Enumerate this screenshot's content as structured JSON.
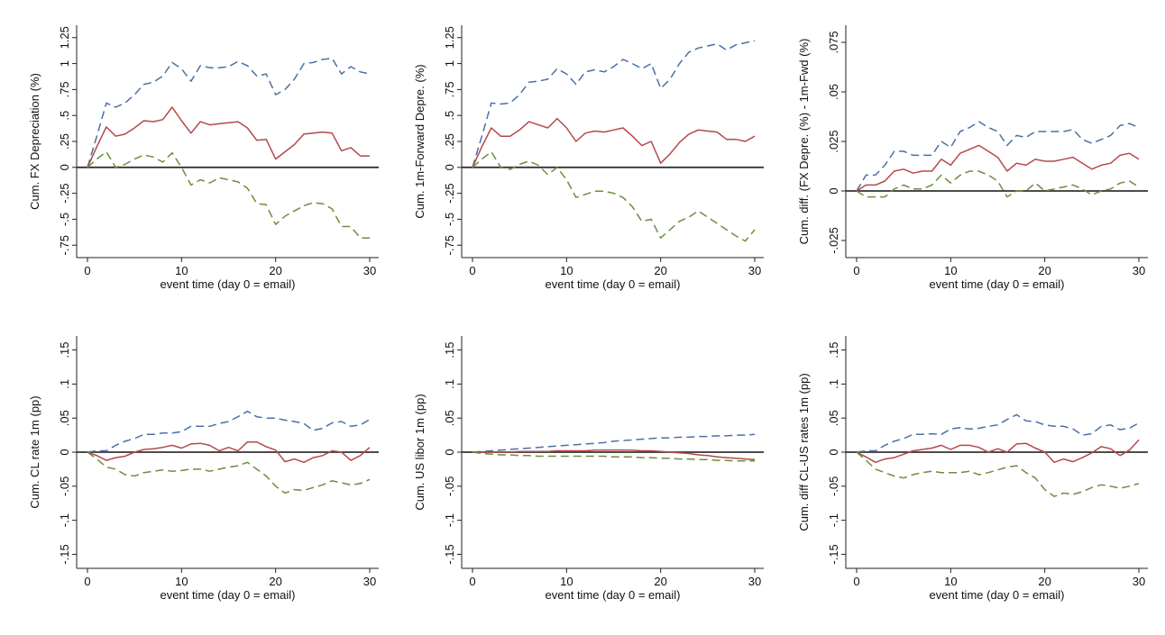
{
  "figure": {
    "colors": {
      "point_estimate": "#b5484a",
      "upper_band": "#4a6fa8",
      "lower_band": "#6a8f3a",
      "zero_line": "#333333",
      "background": "#eef2f6"
    }
  },
  "chart_data": [
    {
      "type": "line",
      "xlabel": "event time (day 0 = email)",
      "ylabel": "Cum. FX Depreciation (%)",
      "xlim": [
        0,
        30
      ],
      "ylim": [
        -0.8,
        1.3
      ],
      "xticks": [
        0,
        10,
        20,
        30
      ],
      "yticks": [
        -0.75,
        -0.5,
        -0.25,
        0,
        0.25,
        0.5,
        0.75,
        1,
        1.25
      ],
      "ytick_labels": [
        "-.75",
        "-.5",
        "-.25",
        "0",
        ".25",
        ".5",
        ".75",
        "1",
        "1.25"
      ],
      "zero_line": true,
      "x": [
        0,
        1,
        2,
        3,
        4,
        5,
        6,
        7,
        8,
        9,
        10,
        11,
        12,
        13,
        14,
        15,
        16,
        17,
        18,
        19,
        20,
        21,
        22,
        23,
        24,
        25,
        26,
        27,
        28,
        29,
        30
      ],
      "series": [
        {
          "role": "upper",
          "style": "dashed",
          "values": [
            0,
            0.3,
            0.62,
            0.58,
            0.62,
            0.7,
            0.8,
            0.82,
            0.88,
            1.01,
            0.95,
            0.83,
            0.98,
            0.96,
            0.96,
            0.97,
            1.02,
            0.98,
            0.88,
            0.9,
            0.7,
            0.75,
            0.85,
            1.0,
            1.01,
            1.04,
            1.05,
            0.9,
            0.97,
            0.92,
            0.9
          ]
        },
        {
          "role": "estimate",
          "style": "solid",
          "values": [
            0,
            0.2,
            0.39,
            0.3,
            0.32,
            0.38,
            0.45,
            0.44,
            0.46,
            0.58,
            0.45,
            0.33,
            0.44,
            0.41,
            0.42,
            0.43,
            0.44,
            0.38,
            0.26,
            0.27,
            0.08,
            0.15,
            0.22,
            0.32,
            0.33,
            0.34,
            0.33,
            0.16,
            0.19,
            0.11,
            0.11
          ]
        },
        {
          "role": "lower",
          "style": "dashed",
          "values": [
            0,
            0.08,
            0.15,
            0,
            0.03,
            0.08,
            0.12,
            0.1,
            0.05,
            0.14,
            0,
            -0.17,
            -0.12,
            -0.15,
            -0.1,
            -0.12,
            -0.14,
            -0.2,
            -0.35,
            -0.36,
            -0.55,
            -0.47,
            -0.42,
            -0.37,
            -0.34,
            -0.35,
            -0.4,
            -0.57,
            -0.57,
            -0.68,
            -0.68
          ]
        }
      ]
    },
    {
      "type": "line",
      "xlabel": "event time (day 0 = email)",
      "ylabel": "Cum. 1m-Forward Depre. (%)",
      "xlim": [
        0,
        30
      ],
      "ylim": [
        -0.8,
        1.3
      ],
      "xticks": [
        0,
        10,
        20,
        30
      ],
      "yticks": [
        -0.75,
        -0.5,
        -0.25,
        0,
        0.25,
        0.5,
        0.75,
        1,
        1.25
      ],
      "ytick_labels": [
        "-.75",
        "-.5",
        "-.25",
        "0",
        ".25",
        ".5",
        ".75",
        "1",
        "1.25"
      ],
      "zero_line": true,
      "x": [
        0,
        1,
        2,
        3,
        4,
        5,
        6,
        7,
        8,
        9,
        10,
        11,
        12,
        13,
        14,
        15,
        16,
        17,
        18,
        19,
        20,
        21,
        22,
        23,
        24,
        25,
        26,
        27,
        28,
        29,
        30
      ],
      "series": [
        {
          "role": "upper",
          "style": "dashed",
          "values": [
            0,
            0.3,
            0.62,
            0.61,
            0.62,
            0.7,
            0.82,
            0.83,
            0.85,
            0.95,
            0.9,
            0.8,
            0.92,
            0.94,
            0.92,
            0.97,
            1.04,
            1.0,
            0.95,
            1.0,
            0.76,
            0.85,
            1.0,
            1.11,
            1.15,
            1.17,
            1.19,
            1.13,
            1.18,
            1.2,
            1.22
          ]
        },
        {
          "role": "estimate",
          "style": "solid",
          "values": [
            0,
            0.2,
            0.38,
            0.3,
            0.3,
            0.36,
            0.44,
            0.41,
            0.38,
            0.47,
            0.38,
            0.25,
            0.33,
            0.35,
            0.34,
            0.36,
            0.38,
            0.3,
            0.21,
            0.25,
            0.04,
            0.13,
            0.24,
            0.32,
            0.36,
            0.35,
            0.34,
            0.27,
            0.27,
            0.25,
            0.3
          ]
        },
        {
          "role": "lower",
          "style": "dashed",
          "values": [
            0,
            0.08,
            0.15,
            0.0,
            -0.02,
            0.03,
            0.06,
            0.02,
            -0.07,
            0.0,
            -0.12,
            -0.29,
            -0.26,
            -0.23,
            -0.23,
            -0.25,
            -0.29,
            -0.38,
            -0.52,
            -0.5,
            -0.68,
            -0.6,
            -0.52,
            -0.48,
            -0.42,
            -0.48,
            -0.54,
            -0.6,
            -0.66,
            -0.71,
            -0.6
          ]
        }
      ]
    },
    {
      "type": "line",
      "xlabel": "event time (day 0 = email)",
      "ylabel": "Cum. diff.  (FX Depre. (%) - 1m-Fwd (%)",
      "xlim": [
        0,
        30
      ],
      "ylim": [
        -0.03,
        0.08
      ],
      "xticks": [
        0,
        10,
        20,
        30
      ],
      "yticks": [
        -0.025,
        0,
        0.025,
        0.05,
        0.075
      ],
      "ytick_labels": [
        "-.025",
        "0",
        ".025",
        ".05",
        ".075"
      ],
      "zero_line": true,
      "x": [
        0,
        1,
        2,
        3,
        4,
        5,
        6,
        7,
        8,
        9,
        10,
        11,
        12,
        13,
        14,
        15,
        16,
        17,
        18,
        19,
        20,
        21,
        22,
        23,
        24,
        25,
        26,
        27,
        28,
        29,
        30
      ],
      "series": [
        {
          "role": "upper",
          "style": "dashed",
          "values": [
            0,
            0.008,
            0.008,
            0.013,
            0.02,
            0.02,
            0.018,
            0.018,
            0.018,
            0.025,
            0.022,
            0.03,
            0.032,
            0.035,
            0.032,
            0.03,
            0.023,
            0.028,
            0.027,
            0.03,
            0.03,
            0.03,
            0.03,
            0.031,
            0.026,
            0.024,
            0.026,
            0.028,
            0.033,
            0.034,
            0.032
          ]
        },
        {
          "role": "estimate",
          "style": "solid",
          "values": [
            0,
            0.003,
            0.003,
            0.005,
            0.01,
            0.011,
            0.009,
            0.01,
            0.01,
            0.016,
            0.013,
            0.019,
            0.021,
            0.023,
            0.02,
            0.017,
            0.01,
            0.014,
            0.013,
            0.016,
            0.015,
            0.015,
            0.016,
            0.017,
            0.014,
            0.011,
            0.013,
            0.014,
            0.018,
            0.019,
            0.016
          ]
        },
        {
          "role": "lower",
          "style": "dashed",
          "values": [
            0,
            -0.003,
            -0.003,
            -0.003,
            0.001,
            0.003,
            0.001,
            0.001,
            0.003,
            0.008,
            0.004,
            0.008,
            0.01,
            0.01,
            0.008,
            0.005,
            -0.003,
            0,
            0,
            0.004,
            0,
            0.001,
            0.002,
            0.003,
            0.001,
            -0.002,
            0,
            0.001,
            0.004,
            0.005,
            0.002
          ]
        }
      ]
    },
    {
      "type": "line",
      "xlabel": "event time (day 0 = email)",
      "ylabel": "Cum. CL rate 1m (pp)",
      "xlim": [
        0,
        30
      ],
      "ylim": [
        -0.16,
        0.16
      ],
      "xticks": [
        0,
        10,
        20,
        30
      ],
      "yticks": [
        -0.15,
        -0.1,
        -0.05,
        0,
        0.05,
        0.1,
        0.15
      ],
      "ytick_labels": [
        "-.15",
        "-.1",
        "-.05",
        "0",
        ".05",
        ".1",
        ".15"
      ],
      "zero_line": true,
      "x": [
        0,
        1,
        2,
        3,
        4,
        5,
        6,
        7,
        8,
        9,
        10,
        11,
        12,
        13,
        14,
        15,
        16,
        17,
        18,
        19,
        20,
        21,
        22,
        23,
        24,
        25,
        26,
        27,
        28,
        29,
        30
      ],
      "series": [
        {
          "role": "upper",
          "style": "dashed",
          "values": [
            0,
            0.002,
            0.002,
            0.01,
            0.016,
            0.02,
            0.026,
            0.026,
            0.028,
            0.028,
            0.03,
            0.038,
            0.038,
            0.038,
            0.042,
            0.045,
            0.052,
            0.06,
            0.052,
            0.05,
            0.05,
            0.047,
            0.045,
            0.042,
            0.032,
            0.035,
            0.043,
            0.045,
            0.038,
            0.04,
            0.048
          ]
        },
        {
          "role": "estimate",
          "style": "solid",
          "values": [
            0,
            -0.005,
            -0.012,
            -0.008,
            -0.006,
            0,
            0.004,
            0.005,
            0.007,
            0.01,
            0.006,
            0.012,
            0.013,
            0.01,
            0.002,
            0.007,
            0.002,
            0.015,
            0.015,
            0.008,
            0.003,
            -0.014,
            -0.01,
            -0.015,
            -0.008,
            -0.005,
            0.002,
            0,
            -0.012,
            -0.005,
            0.007
          ]
        },
        {
          "role": "lower",
          "style": "dashed",
          "values": [
            0,
            -0.01,
            -0.022,
            -0.025,
            -0.033,
            -0.035,
            -0.03,
            -0.028,
            -0.026,
            -0.028,
            -0.027,
            -0.025,
            -0.025,
            -0.028,
            -0.025,
            -0.022,
            -0.02,
            -0.015,
            -0.025,
            -0.035,
            -0.05,
            -0.06,
            -0.055,
            -0.056,
            -0.052,
            -0.048,
            -0.042,
            -0.045,
            -0.048,
            -0.046,
            -0.04
          ]
        }
      ]
    },
    {
      "type": "line",
      "xlabel": "event time (day 0 = email)",
      "ylabel": "Cum. US libor 1m (pp)",
      "xlim": [
        0,
        30
      ],
      "ylim": [
        -0.16,
        0.16
      ],
      "xticks": [
        0,
        10,
        20,
        30
      ],
      "yticks": [
        -0.15,
        -0.1,
        -0.05,
        0,
        0.05,
        0.1,
        0.15
      ],
      "ytick_labels": [
        "-.15",
        "-.1",
        "-.05",
        "0",
        ".05",
        ".1",
        ".15"
      ],
      "zero_line": true,
      "x": [
        0,
        1,
        2,
        3,
        4,
        5,
        6,
        7,
        8,
        9,
        10,
        11,
        12,
        13,
        14,
        15,
        16,
        17,
        18,
        19,
        20,
        21,
        22,
        23,
        24,
        25,
        26,
        27,
        28,
        29,
        30
      ],
      "series": [
        {
          "role": "upper",
          "style": "dashed",
          "values": [
            0,
            0.001,
            0.002,
            0.003,
            0.004,
            0.005,
            0.006,
            0.007,
            0.008,
            0.009,
            0.01,
            0.011,
            0.012,
            0.013,
            0.014,
            0.016,
            0.017,
            0.018,
            0.019,
            0.02,
            0.021,
            0.021,
            0.022,
            0.022,
            0.023,
            0.023,
            0.024,
            0.024,
            0.025,
            0.025,
            0.026
          ]
        },
        {
          "role": "estimate",
          "style": "solid",
          "values": [
            0,
            0,
            0,
            0,
            0,
            0.001,
            0.001,
            0.001,
            0.001,
            0.002,
            0.002,
            0.002,
            0.002,
            0.003,
            0.003,
            0.003,
            0.003,
            0.003,
            0.002,
            0.002,
            0.001,
            0,
            -0.001,
            -0.002,
            -0.004,
            -0.005,
            -0.007,
            -0.008,
            -0.009,
            -0.01,
            -0.011
          ]
        },
        {
          "role": "lower",
          "style": "dashed",
          "values": [
            0,
            -0.002,
            -0.003,
            -0.004,
            -0.004,
            -0.005,
            -0.005,
            -0.006,
            -0.006,
            -0.006,
            -0.006,
            -0.006,
            -0.006,
            -0.006,
            -0.006,
            -0.007,
            -0.007,
            -0.007,
            -0.008,
            -0.008,
            -0.009,
            -0.009,
            -0.01,
            -0.01,
            -0.011,
            -0.011,
            -0.012,
            -0.012,
            -0.013,
            -0.013,
            -0.013
          ]
        }
      ]
    },
    {
      "type": "line",
      "xlabel": "event time (day 0 = email)",
      "ylabel": "Cum. diff CL-US rates 1m (pp)",
      "xlim": [
        0,
        30
      ],
      "ylim": [
        -0.16,
        0.16
      ],
      "xticks": [
        0,
        10,
        20,
        30
      ],
      "yticks": [
        -0.15,
        -0.1,
        -0.05,
        0,
        0.05,
        0.1,
        0.15
      ],
      "ytick_labels": [
        "-.15",
        "-.1",
        "-.05",
        "0",
        ".05",
        ".1",
        ".15"
      ],
      "zero_line": true,
      "x": [
        0,
        1,
        2,
        3,
        4,
        5,
        6,
        7,
        8,
        9,
        10,
        11,
        12,
        13,
        14,
        15,
        16,
        17,
        18,
        19,
        20,
        21,
        22,
        23,
        24,
        25,
        26,
        27,
        28,
        29,
        30
      ],
      "series": [
        {
          "role": "upper",
          "style": "dashed",
          "values": [
            0,
            0.002,
            0.002,
            0.01,
            0.016,
            0.02,
            0.026,
            0.026,
            0.027,
            0.026,
            0.034,
            0.036,
            0.034,
            0.035,
            0.038,
            0.04,
            0.048,
            0.055,
            0.046,
            0.045,
            0.04,
            0.038,
            0.038,
            0.034,
            0.025,
            0.027,
            0.038,
            0.04,
            0.033,
            0.035,
            0.043
          ]
        },
        {
          "role": "estimate",
          "style": "solid",
          "values": [
            0,
            -0.007,
            -0.015,
            -0.01,
            -0.008,
            -0.003,
            0.002,
            0.004,
            0.006,
            0.01,
            0.004,
            0.01,
            0.01,
            0.007,
            0,
            0.005,
            0,
            0.012,
            0.013,
            0.006,
            0,
            -0.015,
            -0.01,
            -0.014,
            -0.008,
            -0.001,
            0.008,
            0.005,
            -0.005,
            0.003,
            0.018
          ]
        },
        {
          "role": "lower",
          "style": "dashed",
          "values": [
            0,
            -0.012,
            -0.025,
            -0.03,
            -0.035,
            -0.038,
            -0.033,
            -0.03,
            -0.028,
            -0.03,
            -0.03,
            -0.03,
            -0.028,
            -0.033,
            -0.03,
            -0.026,
            -0.022,
            -0.02,
            -0.03,
            -0.038,
            -0.055,
            -0.065,
            -0.06,
            -0.062,
            -0.058,
            -0.052,
            -0.048,
            -0.05,
            -0.053,
            -0.05,
            -0.046
          ]
        }
      ]
    }
  ]
}
